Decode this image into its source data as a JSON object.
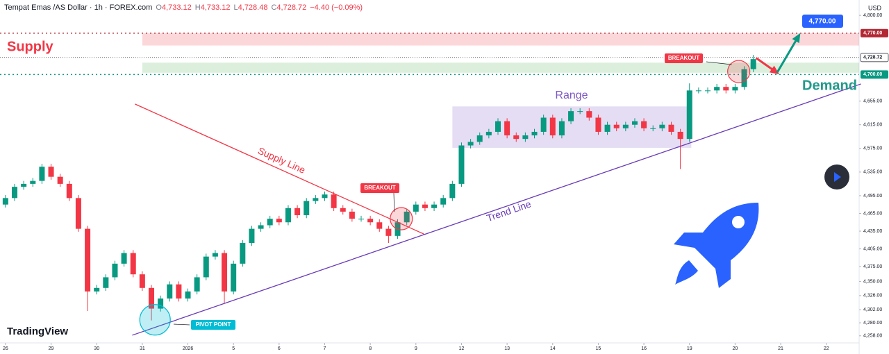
{
  "chart_data": {
    "type": "candlestick",
    "header": {
      "symbol": "Tempat Emas /AS Dollar · 1h · FOREX.com",
      "ohlc": [
        {
          "key": "O",
          "value": "4,733.12"
        },
        {
          "key": "H",
          "value": "4,733.12"
        },
        {
          "key": "L",
          "value": "4,728.48"
        },
        {
          "key": "C",
          "value": "4,728.72"
        }
      ],
      "change": "−4.40 (−0.09%)"
    },
    "currency": "USD",
    "brand": "TradingView",
    "up_color": "#089981",
    "down_color": "#f23645",
    "open": [
      4480,
      4491,
      4510,
      4515,
      4520,
      4544,
      4527,
      4515,
      4491,
      4439,
      4333,
      4339,
      4357,
      4380,
      4398,
      4362,
      4339,
      4304,
      4321,
      4345,
      4321,
      4333,
      4357,
      4392,
      4398,
      4333,
      4380,
      4415,
      4439,
      4445,
      4456,
      4450,
      4474,
      4462,
      4486,
      4491,
      4497,
      4474,
      4468,
      4456,
      4456,
      4450,
      4439,
      4427,
      4450,
      4468,
      4480,
      4474,
      4480,
      4491,
      4515,
      4580,
      4586,
      4597,
      4603,
      4621,
      4597,
      4591,
      4597,
      4603,
      4627,
      4597,
      4621,
      4638,
      4638,
      4627,
      4603,
      4615,
      4609,
      4615,
      4621,
      4609,
      4609,
      4615,
      4603,
      4591,
      4673,
      4673,
      4673,
      4679,
      4673,
      4679,
      4709
    ],
    "high": [
      4496,
      4515,
      4520,
      4525,
      4549,
      4549,
      4532,
      4520,
      4496,
      4444,
      4344,
      4362,
      4385,
      4403,
      4403,
      4367,
      4344,
      4326,
      4350,
      4350,
      4338,
      4362,
      4397,
      4403,
      4403,
      4385,
      4420,
      4444,
      4450,
      4461,
      4461,
      4479,
      4479,
      4491,
      4496,
      4502,
      4502,
      4479,
      4473,
      4461,
      4461,
      4455,
      4444,
      4455,
      4473,
      4485,
      4485,
      4485,
      4496,
      4520,
      4585,
      4591,
      4602,
      4608,
      4626,
      4626,
      4602,
      4602,
      4608,
      4632,
      4632,
      4626,
      4643,
      4643,
      4643,
      4632,
      4620,
      4620,
      4620,
      4626,
      4626,
      4614,
      4620,
      4620,
      4608,
      4685,
      4678,
      4678,
      4684,
      4684,
      4684,
      4714,
      4733
    ],
    "low": [
      4475,
      4486,
      4505,
      4510,
      4515,
      4522,
      4510,
      4486,
      4434,
      4300,
      4328,
      4334,
      4352,
      4375,
      4357,
      4334,
      4284,
      4299,
      4316,
      4316,
      4316,
      4328,
      4352,
      4387,
      4313,
      4328,
      4375,
      4410,
      4434,
      4440,
      4445,
      4445,
      4457,
      4457,
      4481,
      4486,
      4469,
      4463,
      4451,
      4451,
      4445,
      4434,
      4415,
      4422,
      4445,
      4463,
      4469,
      4469,
      4475,
      4486,
      4510,
      4575,
      4581,
      4592,
      4598,
      4592,
      4586,
      4586,
      4592,
      4598,
      4592,
      4592,
      4616,
      4633,
      4622,
      4598,
      4598,
      4604,
      4604,
      4610,
      4604,
      4604,
      4604,
      4598,
      4540,
      4586,
      4668,
      4668,
      4668,
      4668,
      4668,
      4674,
      4704
    ],
    "close": [
      4491,
      4510,
      4515,
      4520,
      4544,
      4527,
      4515,
      4491,
      4439,
      4333,
      4339,
      4357,
      4380,
      4398,
      4362,
      4339,
      4304,
      4321,
      4345,
      4321,
      4333,
      4357,
      4392,
      4398,
      4333,
      4380,
      4415,
      4439,
      4445,
      4456,
      4450,
      4474,
      4462,
      4486,
      4491,
      4497,
      4474,
      4468,
      4456,
      4456,
      4450,
      4439,
      4427,
      4450,
      4468,
      4480,
      4474,
      4480,
      4491,
      4515,
      4580,
      4586,
      4597,
      4603,
      4621,
      4597,
      4591,
      4597,
      4603,
      4627,
      4597,
      4621,
      4638,
      4638,
      4627,
      4603,
      4615,
      4609,
      4615,
      4621,
      4609,
      4609,
      4615,
      4603,
      4591,
      4673,
      4673,
      4673,
      4679,
      4673,
      4679,
      4709,
      4726
    ],
    "xlim": [
      -0.6,
      93.6
    ],
    "xticks": [
      {
        "value": 0,
        "label": "26"
      },
      {
        "value": 5,
        "label": "29"
      },
      {
        "value": 10,
        "label": "30"
      },
      {
        "value": 15,
        "label": "31"
      },
      {
        "value": 20,
        "label": "2026"
      },
      {
        "value": 25,
        "label": "5"
      },
      {
        "value": 30,
        "label": "6"
      },
      {
        "value": 35,
        "label": "7"
      },
      {
        "value": 40,
        "label": "8"
      },
      {
        "value": 45,
        "label": "9"
      },
      {
        "value": 50,
        "label": "12"
      },
      {
        "value": 55,
        "label": "13"
      },
      {
        "value": 60,
        "label": "14"
      },
      {
        "value": 65,
        "label": "15"
      },
      {
        "value": 70,
        "label": "16"
      },
      {
        "value": 75,
        "label": "19"
      },
      {
        "value": 80,
        "label": "20"
      },
      {
        "value": 85,
        "label": "21"
      },
      {
        "value": 90,
        "label": "22"
      }
    ],
    "ylim": [
      4246,
      4826
    ],
    "yticks": [
      {
        "value": 4800,
        "label": "4,800.00"
      },
      {
        "value": 4655,
        "label": "4,655.00"
      },
      {
        "value": 4615,
        "label": "4,615.00"
      },
      {
        "value": 4575,
        "label": "4,575.00"
      },
      {
        "value": 4535,
        "label": "4,535.00"
      },
      {
        "value": 4495,
        "label": "4,495.00"
      },
      {
        "value": 4465,
        "label": "4,465.00"
      },
      {
        "value": 4435,
        "label": "4,435.00"
      },
      {
        "value": 4405,
        "label": "4,405.00"
      },
      {
        "value": 4375,
        "label": "4,375.00"
      },
      {
        "value": 4350,
        "label": "4,350.00"
      },
      {
        "value": 4326,
        "label": "4,326.00"
      },
      {
        "value": 4302,
        "label": "4,302.00"
      },
      {
        "value": 4280,
        "label": "4,280.00"
      },
      {
        "value": 4258,
        "label": "4,258.00"
      }
    ],
    "price_lines": [
      {
        "value": 4770,
        "label": "4,770.00",
        "color": "#b22833"
      },
      {
        "value": 4728.72,
        "label": "4,728.72",
        "color": "#131722"
      },
      {
        "value": 4700,
        "label": "4,700.00",
        "color": "#089981"
      }
    ],
    "drawings": {
      "supply_zone": {
        "label": "Supply",
        "x_start": 15,
        "ylim": [
          4749,
          4770
        ]
      },
      "demand_zone": {
        "label": "Demand",
        "x_start": 15,
        "ylim": [
          4703,
          4720
        ]
      },
      "range": {
        "label": "Range",
        "xlim": [
          49,
          75.2
        ],
        "ylim": [
          4576,
          4646
        ]
      },
      "supply_line": {
        "label": "Supply Line",
        "x": [
          14.2,
          45.9
        ],
        "y": [
          4650,
          4430
        ]
      },
      "trend_line": {
        "label": "Trend Line",
        "x": [
          13.9,
          93.8
        ],
        "y": [
          4259,
          4684
        ]
      },
      "breakouts": [
        {
          "label": "BREAKOUT",
          "x": 43.4,
          "y": 4456
        },
        {
          "label": "BREAKOUT",
          "x": 80.4,
          "y": 4705
        }
      ],
      "pivot": {
        "label": "PIVOT POINT",
        "x": 16.4,
        "y": 4285
      },
      "arrows": [
        {
          "color": "#f23645",
          "x": [
            82.3,
            84.6
          ],
          "y": [
            4728,
            4703
          ]
        },
        {
          "color": "#089981",
          "x": [
            84.6,
            87
          ],
          "y": [
            4703,
            4766
          ]
        }
      ],
      "target": {
        "label": "4,770.00",
        "value": 4770
      }
    }
  }
}
